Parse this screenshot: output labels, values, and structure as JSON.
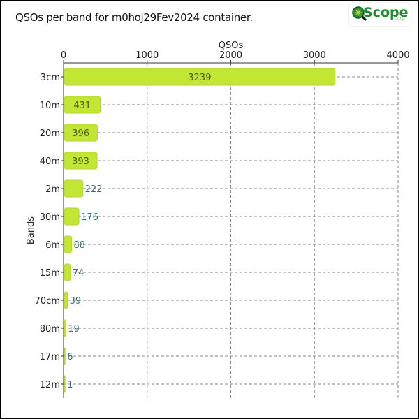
{
  "title": "QSOs per band for m0hoj29Fev2024 container.",
  "logo": {
    "main": "Scope",
    "suffix": ".org"
  },
  "colors": {
    "bar": "#c3e534",
    "bar_stroke": "#b2d82a",
    "grid": "#888888",
    "inside_label": "#4a5a1a",
    "outside_label": "#3d6f6f"
  },
  "chart_data": {
    "type": "bar",
    "orientation": "horizontal",
    "categories": [
      "3cm",
      "10m",
      "20m",
      "40m",
      "2m",
      "30m",
      "6m",
      "15m",
      "70cm",
      "80m",
      "17m",
      "12m"
    ],
    "values": [
      3239,
      431,
      396,
      393,
      222,
      176,
      88,
      74,
      39,
      19,
      6,
      1
    ],
    "xlabel": "QSOs",
    "ylabel": "Bands",
    "xlim": [
      0,
      4000
    ],
    "xticks": [
      0,
      1000,
      2000,
      3000,
      4000
    ],
    "x_axis_position": "top",
    "grid": true,
    "legend": "none"
  }
}
